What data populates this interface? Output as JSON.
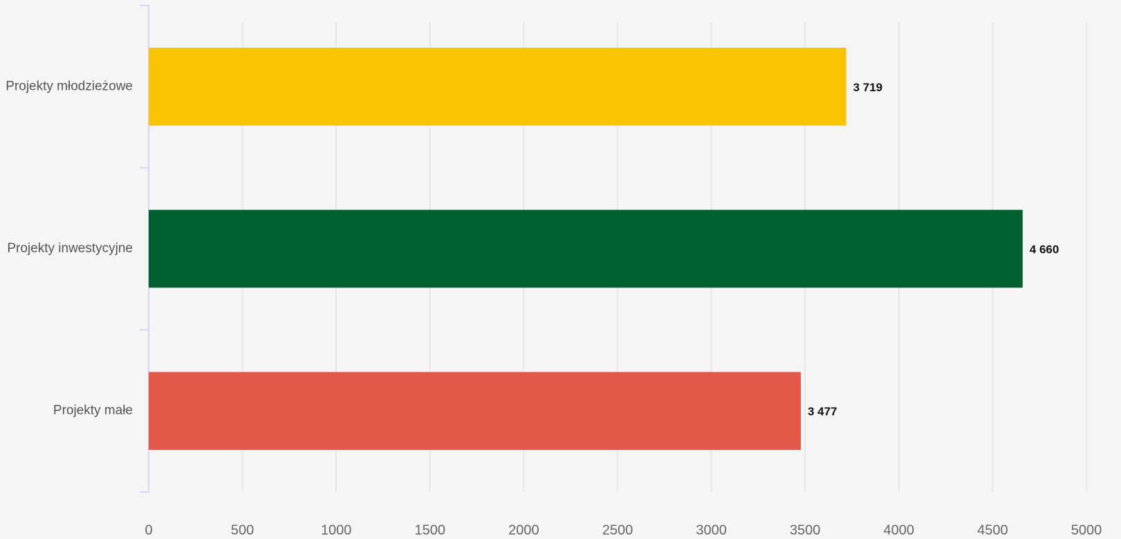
{
  "chart_data": {
    "type": "bar",
    "orientation": "horizontal",
    "categories": [
      "Projekty młodzieżowe",
      "Projekty inwestycyjne",
      "Projekty małe"
    ],
    "values": [
      3719,
      4660,
      3477
    ],
    "value_labels": [
      "3 719",
      "4 660",
      "3 477"
    ],
    "colors": [
      "#f8c400",
      "#00612e",
      "#e35848"
    ],
    "xlim": [
      0,
      5000
    ],
    "xticks": [
      0,
      500,
      1000,
      1500,
      2000,
      2500,
      3000,
      3500,
      4000,
      4500,
      5000
    ],
    "grid": true
  }
}
